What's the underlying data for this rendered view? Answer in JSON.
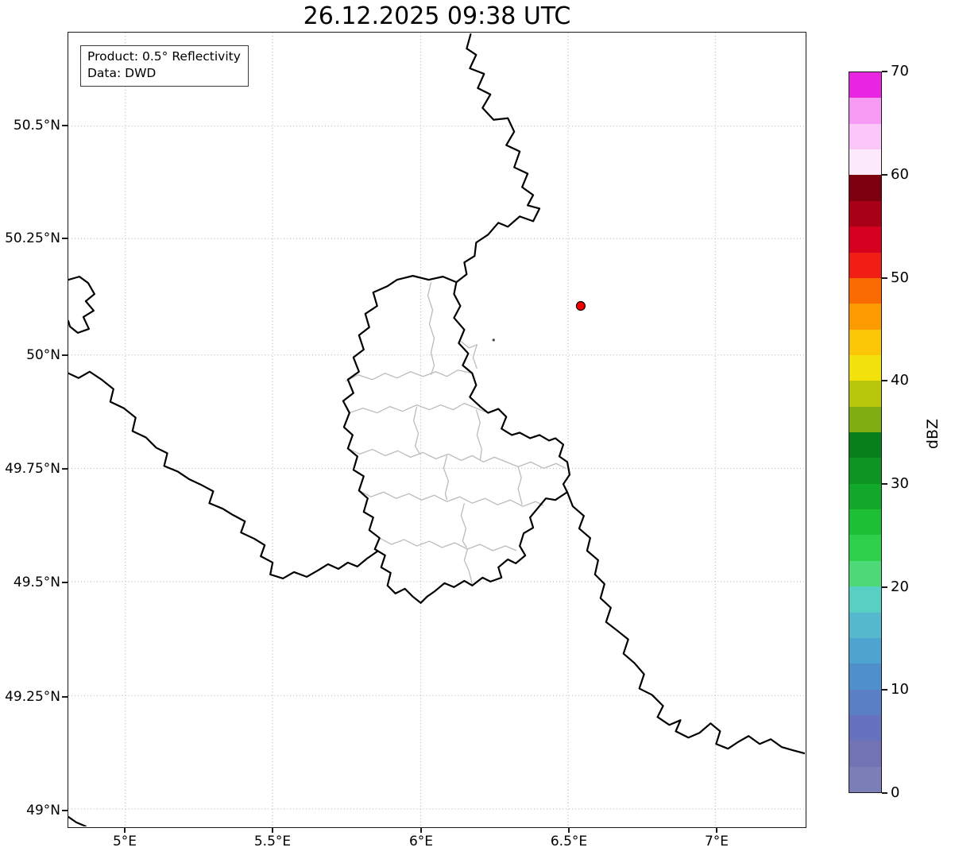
{
  "title": "26.12.2025 09:38 UTC",
  "info_box": {
    "line1": "Product: 0.5° Reflectivity",
    "line2": "Data: DWD"
  },
  "axes": {
    "lat_ticks": [
      "50.5°N",
      "50.25°N",
      "50°N",
      "49.75°N",
      "49.5°N",
      "49.25°N",
      "49°N"
    ],
    "lon_ticks": [
      "5°E",
      "5.5°E",
      "6°E",
      "6.5°E",
      "7°E"
    ]
  },
  "colorbar": {
    "label": "dBZ",
    "ticks": [
      "0",
      "10",
      "20",
      "30",
      "40",
      "50",
      "60",
      "70"
    ],
    "min": 0,
    "max": 70,
    "colors_bottom_to_top": [
      "#7c7eb8",
      "#7173b4",
      "#6672bd",
      "#5a7fc4",
      "#4f8fcb",
      "#4fa3cf",
      "#55b8cd",
      "#57cfc3",
      "#4ed977",
      "#2ecf4a",
      "#1dbf35",
      "#12a82a",
      "#0d9423",
      "#097f1c",
      "#7fae12",
      "#b8c60c",
      "#f2e10a",
      "#fbc606",
      "#fc9a02",
      "#f96a00",
      "#f01e14",
      "#d5001f",
      "#a80016",
      "#7d000f",
      "#fde9fc",
      "#fbc7f9",
      "#f79af4",
      "#e826e2"
    ]
  },
  "map": {
    "background": "#ffffff",
    "gridline_color": "#b0b0b0",
    "national_border_color": "#000000",
    "district_border_color": "#bbbbbb",
    "radar_marker": {
      "color": "#f40000",
      "edge": "#000000"
    }
  }
}
